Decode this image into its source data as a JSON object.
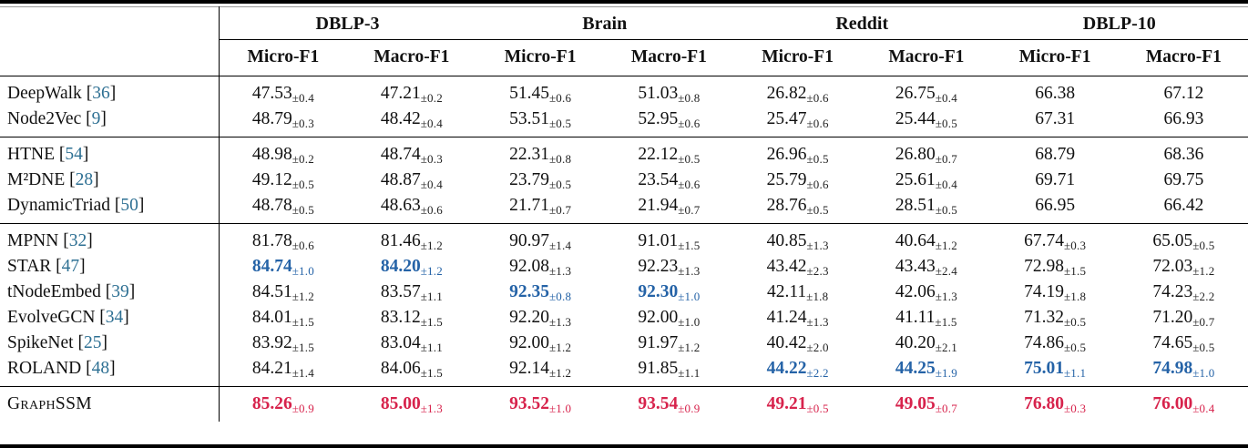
{
  "colors": {
    "text": "#111111",
    "citation": "#2e7093",
    "second_best": "#2563a7",
    "best": "#d7234c",
    "rule": "#000000"
  },
  "bracket_open": "[",
  "bracket_close": "]",
  "table": {
    "datasets": [
      "DBLP-3",
      "Brain",
      "Reddit",
      "DBLP-10"
    ],
    "metric_headers": [
      "Micro-F1",
      "Macro-F1",
      "Micro-F1",
      "Macro-F1",
      "Micro-F1",
      "Macro-F1",
      "Micro-F1",
      "Macro-F1"
    ],
    "groups": [
      {
        "name": "random-walk-methods",
        "rows": [
          {
            "method": "DeepWalk",
            "cite": "36",
            "cells": [
              {
                "v": "47.53",
                "s": "±0.4"
              },
              {
                "v": "47.21",
                "s": "±0.2"
              },
              {
                "v": "51.45",
                "s": "±0.6"
              },
              {
                "v": "51.03",
                "s": "±0.8"
              },
              {
                "v": "26.82",
                "s": "±0.6"
              },
              {
                "v": "26.75",
                "s": "±0.4"
              },
              {
                "v": "66.38",
                "s": ""
              },
              {
                "v": "67.12",
                "s": ""
              }
            ]
          },
          {
            "method": "Node2Vec",
            "cite": "9",
            "cells": [
              {
                "v": "48.79",
                "s": "±0.3"
              },
              {
                "v": "48.42",
                "s": "±0.4"
              },
              {
                "v": "53.51",
                "s": "±0.5"
              },
              {
                "v": "52.95",
                "s": "±0.6"
              },
              {
                "v": "25.47",
                "s": "±0.6"
              },
              {
                "v": "25.44",
                "s": "±0.5"
              },
              {
                "v": "67.31",
                "s": ""
              },
              {
                "v": "66.93",
                "s": ""
              }
            ]
          }
        ]
      },
      {
        "name": "temporal-embedding-methods",
        "rows": [
          {
            "method": "HTNE",
            "cite": "54",
            "cells": [
              {
                "v": "48.98",
                "s": "±0.2"
              },
              {
                "v": "48.74",
                "s": "±0.3"
              },
              {
                "v": "22.31",
                "s": "±0.8"
              },
              {
                "v": "22.12",
                "s": "±0.5"
              },
              {
                "v": "26.96",
                "s": "±0.5"
              },
              {
                "v": "26.80",
                "s": "±0.7"
              },
              {
                "v": "68.79",
                "s": ""
              },
              {
                "v": "68.36",
                "s": ""
              }
            ]
          },
          {
            "method": "M²DNE",
            "cite": "28",
            "cells": [
              {
                "v": "49.12",
                "s": "±0.5"
              },
              {
                "v": "48.87",
                "s": "±0.4"
              },
              {
                "v": "23.79",
                "s": "±0.5"
              },
              {
                "v": "23.54",
                "s": "±0.6"
              },
              {
                "v": "25.79",
                "s": "±0.6"
              },
              {
                "v": "25.61",
                "s": "±0.4"
              },
              {
                "v": "69.71",
                "s": ""
              },
              {
                "v": "69.75",
                "s": ""
              }
            ]
          },
          {
            "method": "DynamicTriad",
            "cite": "50",
            "cells": [
              {
                "v": "48.78",
                "s": "±0.5"
              },
              {
                "v": "48.63",
                "s": "±0.6"
              },
              {
                "v": "21.71",
                "s": "±0.7"
              },
              {
                "v": "21.94",
                "s": "±0.7"
              },
              {
                "v": "28.76",
                "s": "±0.5"
              },
              {
                "v": "28.51",
                "s": "±0.5"
              },
              {
                "v": "66.95",
                "s": ""
              },
              {
                "v": "66.42",
                "s": ""
              }
            ]
          }
        ]
      },
      {
        "name": "dynamic-gnn-methods",
        "rows": [
          {
            "method": "MPNN",
            "cite": "32",
            "cells": [
              {
                "v": "81.78",
                "s": "±0.6"
              },
              {
                "v": "81.46",
                "s": "±1.2"
              },
              {
                "v": "90.97",
                "s": "±1.4"
              },
              {
                "v": "91.01",
                "s": "±1.5"
              },
              {
                "v": "40.85",
                "s": "±1.3"
              },
              {
                "v": "40.64",
                "s": "±1.2"
              },
              {
                "v": "67.74",
                "s": "±0.3"
              },
              {
                "v": "65.05",
                "s": "±0.5"
              }
            ]
          },
          {
            "method": "STAR",
            "cite": "47",
            "cells": [
              {
                "v": "84.74",
                "s": "±1.0",
                "hl": "second"
              },
              {
                "v": "84.20",
                "s": "±1.2",
                "hl": "second"
              },
              {
                "v": "92.08",
                "s": "±1.3"
              },
              {
                "v": "92.23",
                "s": "±1.3"
              },
              {
                "v": "43.42",
                "s": "±2.3"
              },
              {
                "v": "43.43",
                "s": "±2.4"
              },
              {
                "v": "72.98",
                "s": "±1.5"
              },
              {
                "v": "72.03",
                "s": "±1.2"
              }
            ]
          },
          {
            "method": "tNodeEmbed",
            "cite": "39",
            "cells": [
              {
                "v": "84.51",
                "s": "±1.2"
              },
              {
                "v": "83.57",
                "s": "±1.1"
              },
              {
                "v": "92.35",
                "s": "±0.8",
                "hl": "second"
              },
              {
                "v": "92.30",
                "s": "±1.0",
                "hl": "second"
              },
              {
                "v": "42.11",
                "s": "±1.8"
              },
              {
                "v": "42.06",
                "s": "±1.3"
              },
              {
                "v": "74.19",
                "s": "±1.8"
              },
              {
                "v": "74.23",
                "s": "±2.2"
              }
            ]
          },
          {
            "method": "EvolveGCN",
            "cite": "34",
            "cells": [
              {
                "v": "84.01",
                "s": "±1.5"
              },
              {
                "v": "83.12",
                "s": "±1.5"
              },
              {
                "v": "92.20",
                "s": "±1.3"
              },
              {
                "v": "92.00",
                "s": "±1.0"
              },
              {
                "v": "41.24",
                "s": "±1.3"
              },
              {
                "v": "41.11",
                "s": "±1.5"
              },
              {
                "v": "71.32",
                "s": "±0.5"
              },
              {
                "v": "71.20",
                "s": "±0.7"
              }
            ]
          },
          {
            "method": "SpikeNet",
            "cite": "25",
            "cells": [
              {
                "v": "83.92",
                "s": "±1.5"
              },
              {
                "v": "83.04",
                "s": "±1.1"
              },
              {
                "v": "92.00",
                "s": "±1.2"
              },
              {
                "v": "91.97",
                "s": "±1.2"
              },
              {
                "v": "40.42",
                "s": "±2.0"
              },
              {
                "v": "40.20",
                "s": "±2.1"
              },
              {
                "v": "74.86",
                "s": "±0.5"
              },
              {
                "v": "74.65",
                "s": "±0.5"
              }
            ]
          },
          {
            "method": "ROLAND",
            "cite": "48",
            "cells": [
              {
                "v": "84.21",
                "s": "±1.4"
              },
              {
                "v": "84.06",
                "s": "±1.5"
              },
              {
                "v": "92.14",
                "s": "±1.2"
              },
              {
                "v": "91.85",
                "s": "±1.1"
              },
              {
                "v": "44.22",
                "s": "±2.2",
                "hl": "second"
              },
              {
                "v": "44.25",
                "s": "±1.9",
                "hl": "second"
              },
              {
                "v": "75.01",
                "s": "±1.1",
                "hl": "second"
              },
              {
                "v": "74.98",
                "s": "±1.0",
                "hl": "second"
              }
            ]
          }
        ]
      },
      {
        "name": "proposed-method",
        "final": true,
        "rows": [
          {
            "method": "GraphSSM",
            "cite": "",
            "smallcaps": true,
            "cells": [
              {
                "v": "85.26",
                "s": "±0.9",
                "hl": "best"
              },
              {
                "v": "85.00",
                "s": "±1.3",
                "hl": "best"
              },
              {
                "v": "93.52",
                "s": "±1.0",
                "hl": "best"
              },
              {
                "v": "93.54",
                "s": "±0.9",
                "hl": "best"
              },
              {
                "v": "49.21",
                "s": "±0.5",
                "hl": "best"
              },
              {
                "v": "49.05",
                "s": "±0.7",
                "hl": "best"
              },
              {
                "v": "76.80",
                "s": "±0.3",
                "hl": "best"
              },
              {
                "v": "76.00",
                "s": "±0.4",
                "hl": "best"
              }
            ]
          }
        ]
      }
    ]
  }
}
